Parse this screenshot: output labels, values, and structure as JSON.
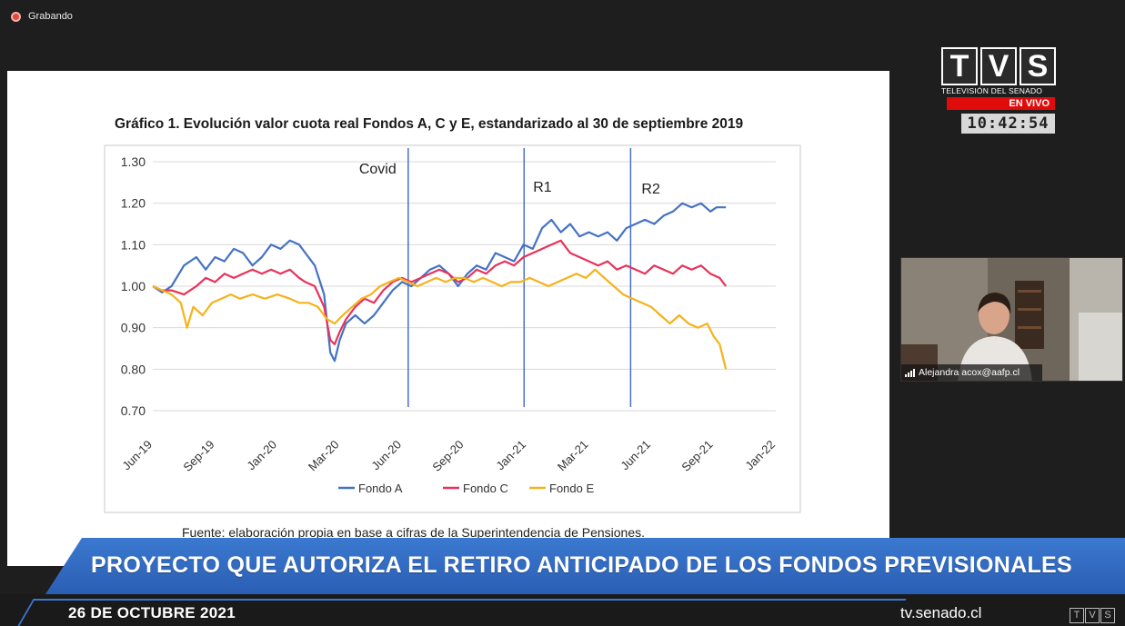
{
  "recording": {
    "label": "Grabando"
  },
  "broadcaster": {
    "letters": [
      "T",
      "V",
      "S"
    ],
    "subtitle": "TELEVISIÓN DEL SENADO",
    "live_label": "EN VIVO",
    "clock": "10:42:54",
    "website": "tv.senado.cl"
  },
  "banner": {
    "headline": "PROYECTO QUE AUTORIZA EL RETIRO ANTICIPADO DE LOS FONDOS PREVISIONALES",
    "date": "26 DE OCTUBRE 2021"
  },
  "participant": {
    "name": "Alejandra acox@aafp.cl"
  },
  "slide": {
    "title": "Gráfico 1. Evolución valor cuota real Fondos A, C y E, estandarizado al 30 de septiembre 2019",
    "source": "Fuente: elaboración propia en base a cifras de la Superintendencia de Pensiones."
  },
  "colors": {
    "fondo_a": "#4472c4",
    "fondo_c": "#e8325a",
    "fondo_e": "#f5b21b",
    "event_lines": "#4a6fc7",
    "banner": "#3b79d0",
    "live": "#e00b0b"
  },
  "chart_data": {
    "type": "line",
    "x_ticks": [
      "Jun-19",
      "Sep-19",
      "Jan-20",
      "Mar-20",
      "Jun-20",
      "Sep-20",
      "Jan-21",
      "Mar-21",
      "Jun-21",
      "Sep-21",
      "Jan-22"
    ],
    "ylim": [
      0.7,
      1.3
    ],
    "y_ticks": [
      "0.70",
      "0.80",
      "0.90",
      "1.00",
      "1.10",
      "1.20",
      "1.30"
    ],
    "grid": "horizontal",
    "legend_position": "bottom",
    "events": [
      {
        "label": "Covid",
        "x": 4.1
      },
      {
        "label": "R1",
        "x": 5.96
      },
      {
        "label": "R2",
        "x": 7.67
      }
    ],
    "series": [
      {
        "name": "Fondo A",
        "color": "#4472c4",
        "points": [
          [
            0,
            1.0
          ],
          [
            0.15,
            0.985
          ],
          [
            0.3,
            1.0
          ],
          [
            0.5,
            1.05
          ],
          [
            0.7,
            1.07
          ],
          [
            0.85,
            1.04
          ],
          [
            1.0,
            1.07
          ],
          [
            1.15,
            1.06
          ],
          [
            1.3,
            1.09
          ],
          [
            1.45,
            1.08
          ],
          [
            1.6,
            1.05
          ],
          [
            1.75,
            1.07
          ],
          [
            1.9,
            1.1
          ],
          [
            2.05,
            1.09
          ],
          [
            2.2,
            1.11
          ],
          [
            2.35,
            1.1
          ],
          [
            2.45,
            1.08
          ],
          [
            2.6,
            1.05
          ],
          [
            2.75,
            0.98
          ],
          [
            2.85,
            0.84
          ],
          [
            2.92,
            0.82
          ],
          [
            3.0,
            0.87
          ],
          [
            3.1,
            0.91
          ],
          [
            3.25,
            0.93
          ],
          [
            3.4,
            0.91
          ],
          [
            3.55,
            0.93
          ],
          [
            3.7,
            0.96
          ],
          [
            3.85,
            0.99
          ],
          [
            4.0,
            1.01
          ],
          [
            4.15,
            1.0
          ],
          [
            4.3,
            1.02
          ],
          [
            4.45,
            1.04
          ],
          [
            4.6,
            1.05
          ],
          [
            4.75,
            1.03
          ],
          [
            4.9,
            1.0
          ],
          [
            5.05,
            1.03
          ],
          [
            5.2,
            1.05
          ],
          [
            5.35,
            1.04
          ],
          [
            5.5,
            1.08
          ],
          [
            5.65,
            1.07
          ],
          [
            5.8,
            1.06
          ],
          [
            5.95,
            1.1
          ],
          [
            6.1,
            1.09
          ],
          [
            6.25,
            1.14
          ],
          [
            6.4,
            1.16
          ],
          [
            6.55,
            1.13
          ],
          [
            6.7,
            1.15
          ],
          [
            6.85,
            1.12
          ],
          [
            7.0,
            1.13
          ],
          [
            7.15,
            1.12
          ],
          [
            7.3,
            1.13
          ],
          [
            7.45,
            1.11
          ],
          [
            7.6,
            1.14
          ],
          [
            7.75,
            1.15
          ],
          [
            7.9,
            1.16
          ],
          [
            8.05,
            1.15
          ],
          [
            8.2,
            1.17
          ],
          [
            8.35,
            1.18
          ],
          [
            8.5,
            1.2
          ],
          [
            8.65,
            1.19
          ],
          [
            8.8,
            1.2
          ],
          [
            8.95,
            1.18
          ],
          [
            9.05,
            1.19
          ],
          [
            9.2,
            1.19
          ]
        ]
      },
      {
        "name": "Fondo C",
        "color": "#e8325a",
        "points": [
          [
            0,
            1.0
          ],
          [
            0.15,
            0.99
          ],
          [
            0.3,
            0.99
          ],
          [
            0.5,
            0.98
          ],
          [
            0.7,
            1.0
          ],
          [
            0.85,
            1.02
          ],
          [
            1.0,
            1.01
          ],
          [
            1.15,
            1.03
          ],
          [
            1.3,
            1.02
          ],
          [
            1.45,
            1.03
          ],
          [
            1.6,
            1.04
          ],
          [
            1.75,
            1.03
          ],
          [
            1.9,
            1.04
          ],
          [
            2.05,
            1.03
          ],
          [
            2.2,
            1.04
          ],
          [
            2.35,
            1.02
          ],
          [
            2.45,
            1.01
          ],
          [
            2.6,
            1.0
          ],
          [
            2.75,
            0.95
          ],
          [
            2.85,
            0.87
          ],
          [
            2.92,
            0.86
          ],
          [
            3.0,
            0.89
          ],
          [
            3.1,
            0.92
          ],
          [
            3.25,
            0.95
          ],
          [
            3.4,
            0.97
          ],
          [
            3.55,
            0.96
          ],
          [
            3.7,
            0.99
          ],
          [
            3.85,
            1.01
          ],
          [
            4.0,
            1.02
          ],
          [
            4.15,
            1.01
          ],
          [
            4.3,
            1.02
          ],
          [
            4.45,
            1.03
          ],
          [
            4.6,
            1.04
          ],
          [
            4.75,
            1.03
          ],
          [
            4.9,
            1.01
          ],
          [
            5.05,
            1.02
          ],
          [
            5.2,
            1.04
          ],
          [
            5.35,
            1.03
          ],
          [
            5.5,
            1.05
          ],
          [
            5.65,
            1.06
          ],
          [
            5.8,
            1.05
          ],
          [
            5.95,
            1.07
          ],
          [
            6.1,
            1.08
          ],
          [
            6.25,
            1.09
          ],
          [
            6.4,
            1.1
          ],
          [
            6.55,
            1.11
          ],
          [
            6.7,
            1.08
          ],
          [
            6.85,
            1.07
          ],
          [
            7.0,
            1.06
          ],
          [
            7.15,
            1.05
          ],
          [
            7.3,
            1.06
          ],
          [
            7.45,
            1.04
          ],
          [
            7.6,
            1.05
          ],
          [
            7.75,
            1.04
          ],
          [
            7.9,
            1.03
          ],
          [
            8.05,
            1.05
          ],
          [
            8.2,
            1.04
          ],
          [
            8.35,
            1.03
          ],
          [
            8.5,
            1.05
          ],
          [
            8.65,
            1.04
          ],
          [
            8.8,
            1.05
          ],
          [
            8.95,
            1.03
          ],
          [
            9.1,
            1.02
          ],
          [
            9.2,
            1.0
          ]
        ]
      },
      {
        "name": "Fondo E",
        "color": "#f5b21b",
        "points": [
          [
            0,
            1.0
          ],
          [
            0.15,
            0.99
          ],
          [
            0.3,
            0.98
          ],
          [
            0.45,
            0.96
          ],
          [
            0.55,
            0.9
          ],
          [
            0.65,
            0.95
          ],
          [
            0.8,
            0.93
          ],
          [
            0.95,
            0.96
          ],
          [
            1.1,
            0.97
          ],
          [
            1.25,
            0.98
          ],
          [
            1.4,
            0.97
          ],
          [
            1.6,
            0.98
          ],
          [
            1.8,
            0.97
          ],
          [
            2.0,
            0.98
          ],
          [
            2.2,
            0.97
          ],
          [
            2.35,
            0.96
          ],
          [
            2.5,
            0.96
          ],
          [
            2.65,
            0.95
          ],
          [
            2.8,
            0.92
          ],
          [
            2.92,
            0.91
          ],
          [
            3.05,
            0.93
          ],
          [
            3.2,
            0.95
          ],
          [
            3.35,
            0.97
          ],
          [
            3.5,
            0.98
          ],
          [
            3.65,
            1.0
          ],
          [
            3.8,
            1.01
          ],
          [
            3.95,
            1.02
          ],
          [
            4.1,
            1.01
          ],
          [
            4.25,
            1.0
          ],
          [
            4.4,
            1.01
          ],
          [
            4.55,
            1.02
          ],
          [
            4.7,
            1.01
          ],
          [
            4.85,
            1.02
          ],
          [
            5.0,
            1.02
          ],
          [
            5.15,
            1.01
          ],
          [
            5.3,
            1.02
          ],
          [
            5.45,
            1.01
          ],
          [
            5.6,
            1.0
          ],
          [
            5.75,
            1.01
          ],
          [
            5.9,
            1.01
          ],
          [
            6.05,
            1.02
          ],
          [
            6.2,
            1.01
          ],
          [
            6.35,
            1.0
          ],
          [
            6.5,
            1.01
          ],
          [
            6.65,
            1.02
          ],
          [
            6.8,
            1.03
          ],
          [
            6.95,
            1.02
          ],
          [
            7.1,
            1.04
          ],
          [
            7.25,
            1.02
          ],
          [
            7.4,
            1.0
          ],
          [
            7.55,
            0.98
          ],
          [
            7.7,
            0.97
          ],
          [
            7.85,
            0.96
          ],
          [
            8.0,
            0.95
          ],
          [
            8.15,
            0.93
          ],
          [
            8.3,
            0.91
          ],
          [
            8.45,
            0.93
          ],
          [
            8.6,
            0.91
          ],
          [
            8.75,
            0.9
          ],
          [
            8.9,
            0.91
          ],
          [
            9.0,
            0.88
          ],
          [
            9.1,
            0.86
          ],
          [
            9.2,
            0.8
          ]
        ]
      }
    ]
  }
}
